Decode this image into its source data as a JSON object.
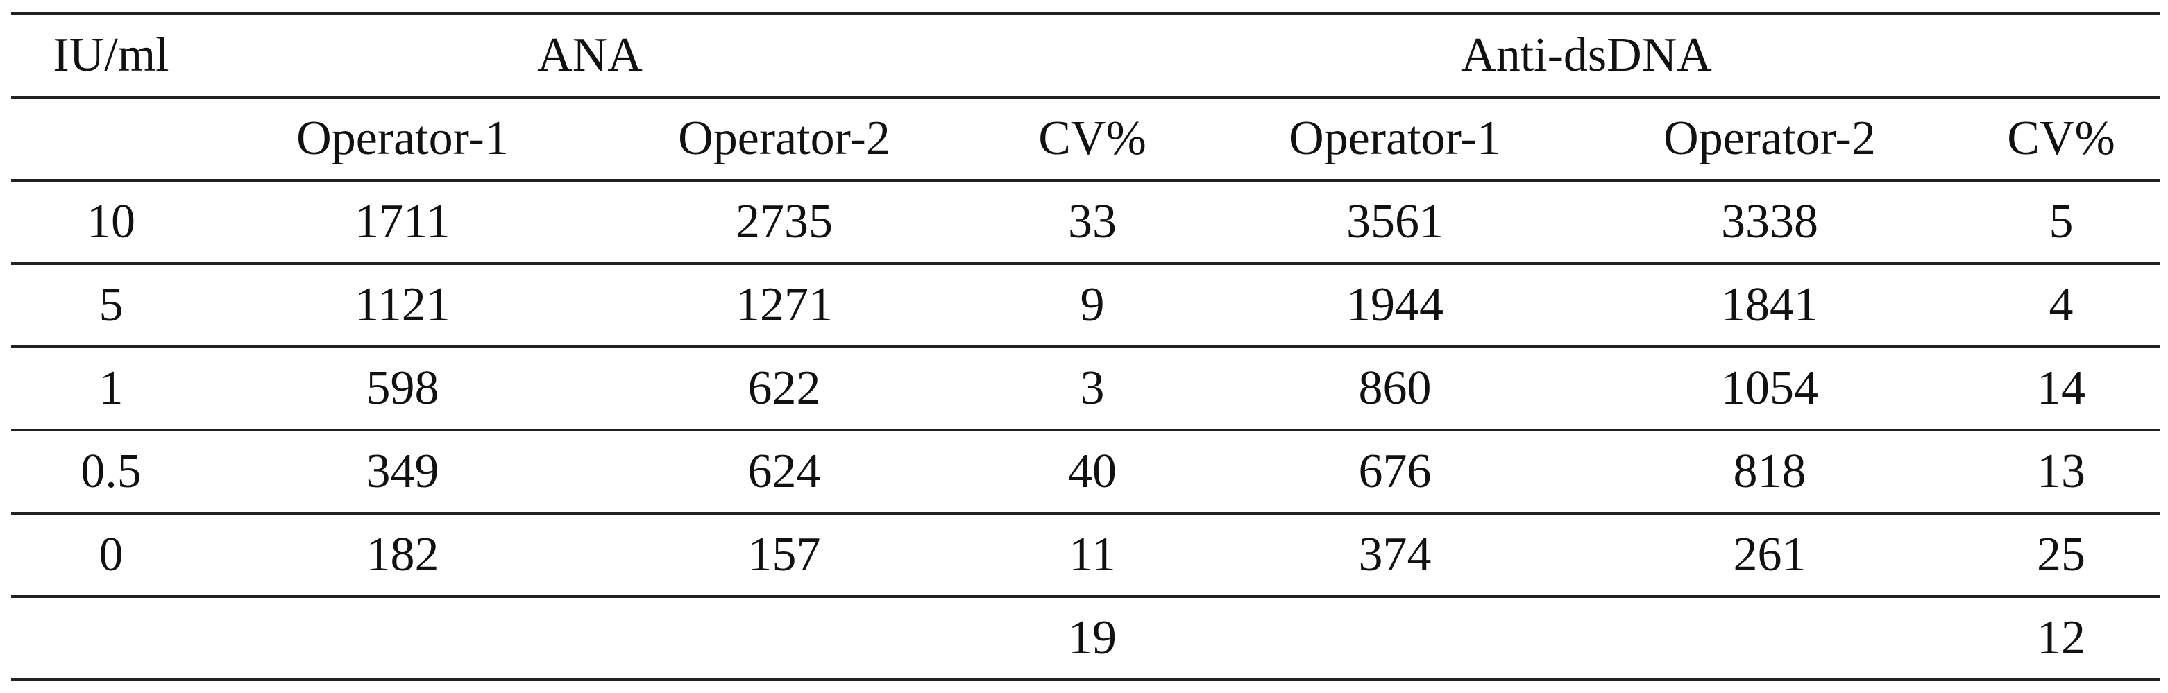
{
  "table": {
    "header": [
      "IU/ml",
      "ANA",
      "Anti-dsDNA"
    ],
    "subheader": [
      null,
      "Operator-1",
      "Operator-2",
      "CV%",
      "Operator-1",
      "Operator-2",
      "CV%"
    ],
    "rows": [
      [
        "10",
        "1711",
        "2735",
        "33",
        "3561",
        "3338",
        "5"
      ],
      [
        "5",
        "1121",
        "1271",
        "9",
        "1944",
        "1841",
        "4"
      ],
      [
        "1",
        "598",
        "622",
        "3",
        "860",
        "1054",
        "14"
      ],
      [
        "0.5",
        "349",
        "624",
        "40",
        "676",
        "818",
        "13"
      ],
      [
        "0",
        "182",
        "157",
        "11",
        "374",
        "261",
        "25"
      ],
      [
        null,
        null,
        null,
        "19",
        null,
        null,
        "12"
      ]
    ]
  }
}
